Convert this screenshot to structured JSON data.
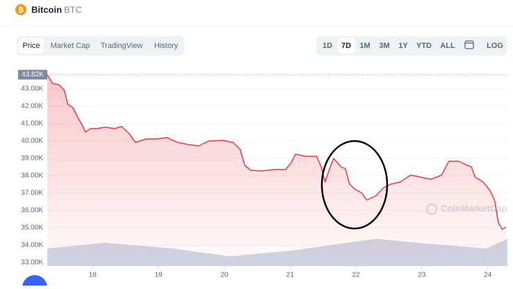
{
  "header": {
    "name": "Bitcoin",
    "symbol": "BTC"
  },
  "tabs": [
    "Price",
    "Market Cap",
    "TradingView",
    "History"
  ],
  "ranges": [
    "1D",
    "7D",
    "1M",
    "3M",
    "1Y",
    "YTD",
    "ALL",
    "LOG"
  ],
  "watermark": "CoinMarketCap",
  "chart_data": {
    "type": "line",
    "x": [
      17.31,
      17.39,
      17.49,
      17.57,
      17.62,
      17.7,
      17.78,
      17.84,
      17.89,
      17.97,
      18.07,
      18.18,
      18.34,
      18.44,
      18.55,
      18.65,
      18.81,
      18.97,
      19.13,
      19.29,
      19.45,
      19.61,
      19.76,
      19.97,
      20.13,
      20.24,
      20.31,
      20.4,
      20.56,
      20.77,
      20.93,
      21.01,
      21.08,
      21.24,
      21.4,
      21.47,
      21.53,
      21.59,
      21.66,
      21.77,
      21.84,
      21.9,
      21.98,
      22.09,
      22.16,
      22.3,
      22.42,
      22.53,
      22.67,
      22.83,
      22.98,
      23.14,
      23.3,
      23.41,
      23.56,
      23.69,
      23.75,
      23.81,
      23.93,
      24.04,
      24.11,
      24.16,
      24.22,
      24.28
    ],
    "series": [
      {
        "name": "Price",
        "color": "#ea3943",
        "values": [
          43820,
          43320,
          43240,
          42920,
          42120,
          41920,
          41320,
          40920,
          40520,
          40720,
          40720,
          40800,
          40720,
          40840,
          40440,
          39920,
          40120,
          40120,
          40200,
          39920,
          39800,
          39720,
          40000,
          40040,
          39920,
          39520,
          38600,
          38320,
          38280,
          38360,
          38360,
          38720,
          39240,
          39120,
          39120,
          38520,
          37640,
          38320,
          39000,
          38520,
          38400,
          37520,
          37240,
          37000,
          36600,
          36840,
          37320,
          37520,
          37640,
          38040,
          37920,
          37800,
          38040,
          38840,
          38840,
          38600,
          38520,
          37920,
          37640,
          37120,
          36520,
          35320,
          34920,
          35040
        ]
      },
      {
        "name": "Volume",
        "color": "#cfd6e4",
        "axis": "y2",
        "x": [
          17.31,
          18.18,
          19.23,
          20.08,
          21.03,
          21.87,
          22.3,
          22.93,
          23.98,
          24.3
        ],
        "values": [
          9,
          12,
          9,
          5,
          8,
          12,
          14,
          12,
          9,
          14
        ]
      }
    ],
    "xlim": [
      17.31,
      24.3
    ],
    "xticks": [
      18,
      19,
      20,
      21,
      22,
      23,
      24
    ],
    "ylim": [
      32800,
      44000
    ],
    "yticks": [
      {
        "value": 33000,
        "label": "33.00K"
      },
      {
        "value": 34000,
        "label": "34.00K"
      },
      {
        "value": 35000,
        "label": "35.00K"
      },
      {
        "value": 36000,
        "label": "36.00K"
      },
      {
        "value": 37000,
        "label": "37.00K"
      },
      {
        "value": 38000,
        "label": "38.00K"
      },
      {
        "value": 39000,
        "label": "39.00K"
      },
      {
        "value": 40000,
        "label": "40.00K"
      },
      {
        "value": 41000,
        "label": "41.00K"
      },
      {
        "value": 42000,
        "label": "42.00K"
      },
      {
        "value": 43000,
        "label": "43.00K"
      }
    ],
    "y2lim": [
      0,
      100
    ],
    "current_price": {
      "value": 43820,
      "label": "43.82K"
    },
    "grid": true
  }
}
